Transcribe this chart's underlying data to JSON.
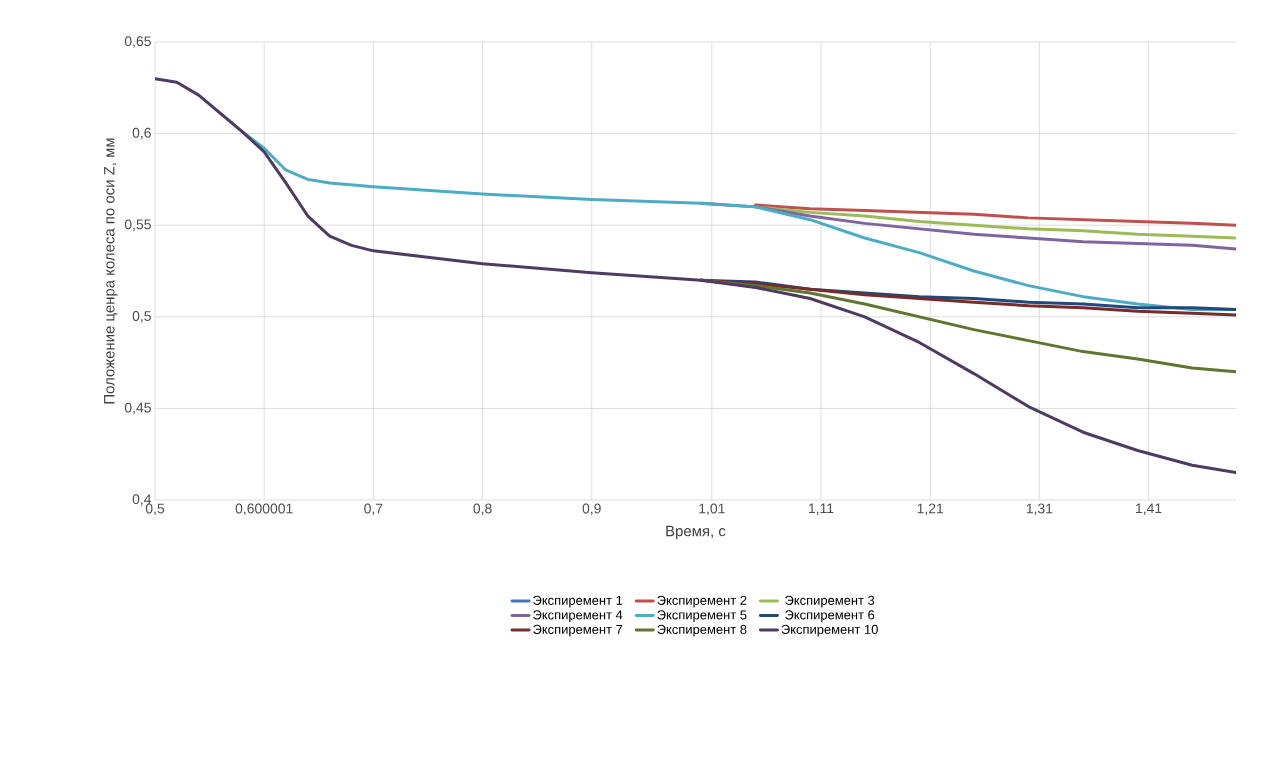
{
  "chart_data": {
    "type": "line",
    "xlabel": "Время, с",
    "ylabel": "Положение ценра колеса по оси Z, мм",
    "x": [
      0.5,
      0.52,
      0.54,
      0.56,
      0.58,
      0.6,
      0.62,
      0.64,
      0.66,
      0.68,
      0.7,
      0.8,
      0.9,
      1.0,
      1.05,
      1.1,
      1.15,
      1.2,
      1.25,
      1.3,
      1.35,
      1.4,
      1.45,
      1.49
    ],
    "series": [
      {
        "name": "Экспиремент 1",
        "color": "#4472c4",
        "values": [
          null,
          null,
          null,
          null,
          null,
          null,
          null,
          null,
          null,
          null,
          null,
          null,
          null,
          null,
          null,
          null,
          null,
          null,
          null,
          null,
          null,
          null,
          null,
          null
        ]
      },
      {
        "name": "Экспиремент 2",
        "color": "#c0504d",
        "values": [
          null,
          null,
          null,
          null,
          null,
          null,
          null,
          null,
          null,
          null,
          null,
          null,
          null,
          null,
          0.561,
          0.559,
          0.558,
          0.557,
          0.556,
          0.554,
          0.553,
          0.552,
          0.551,
          0.55
        ]
      },
      {
        "name": "Экспиремент 3",
        "color": "#9bbb59",
        "values": [
          null,
          null,
          null,
          null,
          null,
          null,
          null,
          null,
          null,
          null,
          null,
          null,
          null,
          null,
          0.56,
          0.557,
          0.555,
          0.552,
          0.55,
          0.548,
          0.547,
          0.545,
          0.544,
          0.543
        ]
      },
      {
        "name": "Экспиремент 4",
        "color": "#8064a2",
        "values": [
          null,
          null,
          null,
          null,
          null,
          null,
          null,
          null,
          null,
          null,
          null,
          null,
          null,
          0.562,
          0.56,
          0.555,
          0.551,
          0.548,
          0.545,
          0.543,
          0.541,
          0.54,
          0.539,
          0.537
        ]
      },
      {
        "name": "Экспиремент 5",
        "color": "#4bacc6",
        "values": [
          null,
          null,
          null,
          null,
          0.601,
          0.592,
          0.58,
          0.575,
          0.573,
          0.572,
          0.571,
          0.567,
          0.564,
          0.562,
          0.56,
          0.553,
          0.543,
          0.535,
          0.525,
          0.517,
          0.511,
          0.507,
          0.504,
          0.504
        ]
      },
      {
        "name": "Экспиремент 6",
        "color": "#1f497d",
        "values": [
          null,
          null,
          null,
          null,
          null,
          null,
          null,
          null,
          null,
          null,
          null,
          null,
          null,
          0.52,
          0.519,
          0.515,
          0.513,
          0.511,
          0.51,
          0.508,
          0.507,
          0.505,
          0.505,
          0.504
        ]
      },
      {
        "name": "Экспиремент 7",
        "color": "#772c2a",
        "values": [
          null,
          null,
          null,
          null,
          null,
          null,
          null,
          null,
          null,
          null,
          null,
          null,
          null,
          0.52,
          0.518,
          0.515,
          0.512,
          0.51,
          0.508,
          0.506,
          0.505,
          0.503,
          0.502,
          0.501
        ]
      },
      {
        "name": "Экспиремент 8",
        "color": "#5f7530",
        "values": [
          null,
          null,
          null,
          null,
          null,
          null,
          null,
          null,
          null,
          null,
          null,
          null,
          null,
          0.52,
          0.517,
          0.513,
          0.507,
          0.5,
          0.493,
          0.487,
          0.481,
          0.477,
          0.472,
          0.47
        ]
      },
      {
        "name": "Экспиремент 10",
        "color": "#4d3b62",
        "values": [
          0.63,
          0.628,
          0.621,
          0.611,
          0.601,
          0.59,
          0.573,
          0.555,
          0.544,
          0.539,
          0.536,
          0.529,
          0.524,
          0.52,
          0.516,
          0.51,
          0.5,
          0.486,
          0.469,
          0.451,
          0.437,
          0.427,
          0.419,
          0.415
        ]
      }
    ],
    "xlim": [
      0.5,
      1.49
    ],
    "xticks": [
      {
        "value": 0.5,
        "label": "0,5"
      },
      {
        "value": 0.600001,
        "label": "0,600001"
      },
      {
        "value": 0.7,
        "label": "0,7"
      },
      {
        "value": 0.8,
        "label": "0,8"
      },
      {
        "value": 0.9,
        "label": "0,9"
      },
      {
        "value": 1.01,
        "label": "1,01"
      },
      {
        "value": 1.11,
        "label": "1,11"
      },
      {
        "value": 1.21,
        "label": "1,21"
      },
      {
        "value": 1.31,
        "label": "1,31"
      },
      {
        "value": 1.41,
        "label": "1,41"
      }
    ],
    "ylim": [
      0.4,
      0.65
    ],
    "yticks": [
      {
        "value": 0.4,
        "label": "0,4"
      },
      {
        "value": 0.45,
        "label": "0,45"
      },
      {
        "value": 0.5,
        "label": "0,5"
      },
      {
        "value": 0.55,
        "label": "0,55"
      },
      {
        "value": 0.6,
        "label": "0,6"
      },
      {
        "value": 0.65,
        "label": "0,65"
      }
    ],
    "grid": true,
    "legend": "bottom",
    "marker": "none",
    "line_style": "solid"
  }
}
